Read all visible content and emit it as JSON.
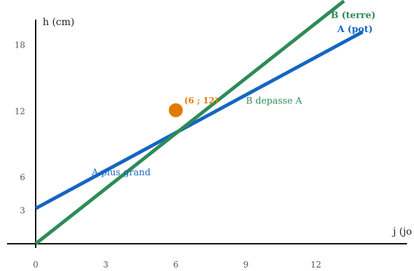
{
  "chart_data": {
    "type": "line",
    "title": "",
    "xlabel": "j (jo",
    "ylabel": "h (cm)",
    "xlim": [
      0,
      15
    ],
    "ylim": [
      0,
      19
    ],
    "xticks": [
      0,
      3,
      6,
      9,
      12
    ],
    "yticks": [
      3,
      6,
      12,
      18
    ],
    "grid": false,
    "series": [
      {
        "name": "A (pot)",
        "color": "#1565c0",
        "x": [
          0,
          14
        ],
        "y": [
          3.2,
          19.2
        ]
      },
      {
        "name": "B (terre)",
        "color": "#2e8b57",
        "x": [
          0,
          13.2
        ],
        "y": [
          0,
          22
        ]
      }
    ],
    "point": {
      "x": 6,
      "y": 12.1,
      "label": "(6 ; 12)",
      "color": "#e07b00"
    },
    "annotations": [
      {
        "text": "A plus grand",
        "x": 2.4,
        "y": 6.2,
        "color": "#1565c0"
      },
      {
        "text": "B depasse A",
        "x": 9,
        "y": 12.7,
        "color": "#2e8b57"
      }
    ]
  }
}
